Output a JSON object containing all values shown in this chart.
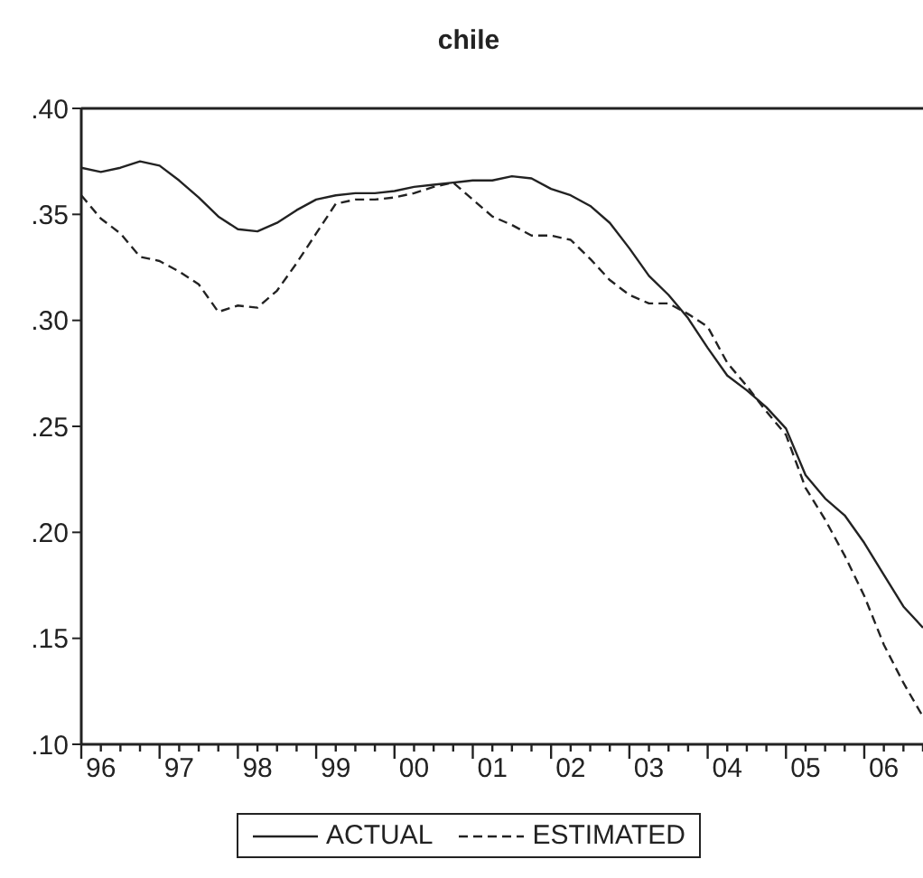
{
  "chart_data": {
    "type": "line",
    "title": "chile",
    "categories": [
      null,
      "96",
      null,
      null,
      null,
      "97",
      null,
      null,
      null,
      "98",
      null,
      null,
      null,
      "99",
      null,
      null,
      null,
      "00",
      null,
      null,
      null,
      "01",
      null,
      null,
      null,
      "02",
      null,
      null,
      null,
      "03",
      null,
      null,
      null,
      "04",
      null,
      null,
      null,
      "05",
      null,
      null,
      null,
      "06",
      null,
      null
    ],
    "series": [
      {
        "name": "ACTUAL",
        "color": "#222222",
        "line_style": "solid",
        "values": [
          0.372,
          0.37,
          0.372,
          0.375,
          0.373,
          0.366,
          0.358,
          0.349,
          0.343,
          0.342,
          0.346,
          0.352,
          0.357,
          0.359,
          0.36,
          0.36,
          0.361,
          0.363,
          0.364,
          0.365,
          0.366,
          0.366,
          0.368,
          0.367,
          0.362,
          0.359,
          0.354,
          0.346,
          0.334,
          0.321,
          0.312,
          0.301,
          0.287,
          0.274,
          0.267,
          0.259,
          0.249,
          0.227,
          0.216,
          0.208,
          0.195,
          0.18,
          0.165,
          0.155
        ]
      },
      {
        "name": "ESTIMATED",
        "color": "#222222",
        "line_style": "dashed",
        "values": [
          0.359,
          0.348,
          0.341,
          0.33,
          0.328,
          0.323,
          0.317,
          0.304,
          0.307,
          0.306,
          0.314,
          0.327,
          0.341,
          0.355,
          0.357,
          0.357,
          0.358,
          0.36,
          0.363,
          0.365,
          0.357,
          0.349,
          0.345,
          0.34,
          0.34,
          0.338,
          0.329,
          0.319,
          0.312,
          0.308,
          0.308,
          0.303,
          0.297,
          0.28,
          0.269,
          0.257,
          0.246,
          0.221,
          0.206,
          0.189,
          0.17,
          0.147,
          0.129,
          0.113
        ]
      }
    ],
    "ylim": [
      0.1,
      0.4
    ],
    "yticks": [
      {
        "value": 0.1,
        "label": ".10"
      },
      {
        "value": 0.15,
        "label": ".15"
      },
      {
        "value": 0.2,
        "label": ".20"
      },
      {
        "value": 0.25,
        "label": ".25"
      },
      {
        "value": 0.3,
        "label": ".30"
      },
      {
        "value": 0.35,
        "label": ".35"
      },
      {
        "value": 0.4,
        "label": ".40"
      }
    ],
    "grid": false,
    "legend": "bottom"
  }
}
